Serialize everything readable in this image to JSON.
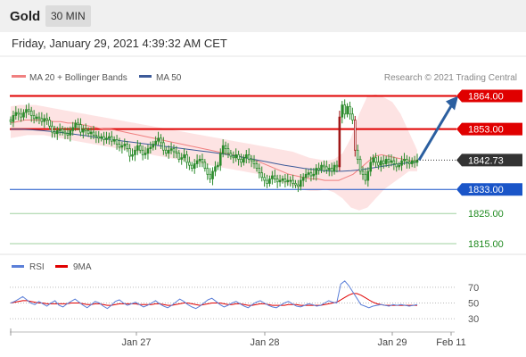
{
  "header": {
    "title": "Gold",
    "timeframe": "30 MIN"
  },
  "timestamp": "Friday, January 29, 2021 4:39:32 AM CET",
  "legend": {
    "ma20_label": "MA 20 + Bollinger Bands",
    "ma50_label": "MA 50",
    "credit": "Research © 2021 Trading Central",
    "rsi_label": "RSI",
    "rsi_ma_label": "9MA"
  },
  "colors": {
    "resistance": "#e00000",
    "support": "#1a55c8",
    "target_green": "#1f8a1f",
    "ma20": "#f08080",
    "ma50": "#3c5a99",
    "bollinger_fill": "#fde0e0",
    "candle": "#2a8a2a",
    "candle_down": "#a01818",
    "arrow": "#2b5fa0",
    "rsi": "#5b7fd8",
    "rsi_ma": "#e00000"
  },
  "chart_data": [
    {
      "type": "candlestick",
      "y_range": [
        1808,
        1870
      ],
      "x_labels": [
        "Jan 27",
        "Jan 28",
        "Jan 29",
        "Feb 11"
      ],
      "levels": [
        {
          "value": 1864.0,
          "label": "1864.00",
          "kind": "resistance"
        },
        {
          "value": 1853.0,
          "label": "1853.00",
          "kind": "resistance"
        },
        {
          "value": 1842.73,
          "label": "1842.73",
          "kind": "last"
        },
        {
          "value": 1833.0,
          "label": "1833.00",
          "kind": "support"
        },
        {
          "value": 1825.0,
          "label": "1825.00",
          "kind": "target"
        },
        {
          "value": 1815.0,
          "label": "1815.00",
          "kind": "target"
        }
      ],
      "close": [
        1855.5,
        1857.5,
        1858.5,
        1858.0,
        1857.0,
        1858.5,
        1859.5,
        1859.0,
        1857.5,
        1856.5,
        1857.0,
        1856.5,
        1855.5,
        1856.5,
        1856.0,
        1854.0,
        1852.0,
        1851.5,
        1852.5,
        1853.0,
        1852.0,
        1851.5,
        1851.0,
        1852.5,
        1853.5,
        1855.0,
        1854.5,
        1852.0,
        1853.0,
        1852.5,
        1851.5,
        1852.0,
        1851.0,
        1850.5,
        1850.0,
        1850.5,
        1849.5,
        1850.0,
        1850.5,
        1849.0,
        1849.5,
        1848.0,
        1847.0,
        1847.5,
        1848.0,
        1846.5,
        1844.0,
        1844.5,
        1846.0,
        1847.5,
        1846.0,
        1844.5,
        1845.0,
        1846.5,
        1847.0,
        1848.0,
        1849.0,
        1850.0,
        1848.5,
        1846.0,
        1845.0,
        1846.0,
        1846.5,
        1845.5,
        1845.0,
        1843.0,
        1843.5,
        1844.5,
        1842.0,
        1841.0,
        1840.0,
        1841.5,
        1842.5,
        1843.0,
        1842.0,
        1840.0,
        1838.0,
        1836.5,
        1839.0,
        1840.5,
        1841.0,
        1845.0,
        1847.5,
        1846.5,
        1845.0,
        1844.0,
        1843.5,
        1844.5,
        1843.0,
        1842.0,
        1843.5,
        1844.5,
        1843.0,
        1842.5,
        1841.5,
        1840.0,
        1838.5,
        1837.0,
        1836.0,
        1835.0,
        1836.5,
        1837.5,
        1836.5,
        1835.5,
        1836.0,
        1836.5,
        1835.5,
        1836.0,
        1836.0,
        1835.0,
        1834.5,
        1834.0,
        1836.0,
        1837.0,
        1838.0,
        1838.5,
        1837.5,
        1838.0,
        1840.0,
        1839.5,
        1841.0,
        1840.5,
        1839.5,
        1840.0,
        1839.0,
        1841.0,
        1840.5,
        1857.0,
        1861.0,
        1858.0,
        1860.5,
        1858.0,
        1856.0,
        1846.0,
        1843.0,
        1839.0,
        1838.0,
        1836.0,
        1839.0,
        1842.0,
        1843.5,
        1842.0,
        1841.0,
        1842.5,
        1841.5,
        1843.0,
        1842.0,
        1842.5,
        1841.5,
        1840.5,
        1841.0,
        1842.5,
        1843.0,
        1842.0,
        1841.5,
        1842.5,
        1842.0,
        1842.73
      ],
      "ma20": [
        1855.0,
        1855.5,
        1856.0,
        1856.0,
        1856.0,
        1856.0,
        1855.5,
        1855.5,
        1855.0,
        1855.0,
        1854.5,
        1854.0,
        1853.5,
        1853.0,
        1853.0,
        1852.5,
        1852.0,
        1851.5,
        1851.0,
        1850.5,
        1850.0,
        1849.5,
        1849.0,
        1848.5,
        1848.0,
        1847.5,
        1847.0,
        1846.5,
        1846.0,
        1845.5,
        1845.0,
        1844.5,
        1844.0,
        1843.5,
        1843.0,
        1842.0,
        1841.0,
        1840.0,
        1839.0,
        1838.0,
        1837.5,
        1837.0,
        1836.5,
        1836.5,
        1836.0,
        1836.0,
        1836.0,
        1837.0,
        1838.0,
        1840.0,
        1842.0,
        1844.0,
        1844.5,
        1844.0,
        1843.5,
        1843.0,
        1842.5,
        1842.5
      ],
      "ma50": [
        1853.0,
        1853.0,
        1852.8,
        1852.6,
        1852.3,
        1852.0,
        1851.6,
        1851.2,
        1850.8,
        1850.3,
        1849.8,
        1849.4,
        1849.0,
        1848.6,
        1848.2,
        1847.8,
        1847.4,
        1847.0,
        1846.6,
        1846.2,
        1845.8,
        1845.4,
        1845.0,
        1844.5,
        1844.0,
        1843.4,
        1842.8,
        1842.2,
        1841.6,
        1841.0,
        1840.5,
        1840.0,
        1839.6,
        1839.2,
        1839.0,
        1839.0,
        1839.2,
        1839.5,
        1840.0,
        1840.5,
        1841.0,
        1841.4,
        1841.8,
        1842.0
      ],
      "bb_upper": [
        1860.5,
        1861.0,
        1861.0,
        1861.0,
        1860.5,
        1860.0,
        1859.5,
        1859.0,
        1858.5,
        1858.0,
        1857.5,
        1857.0,
        1856.5,
        1856.0,
        1855.5,
        1855.0,
        1854.5,
        1854.0,
        1853.5,
        1853.0,
        1852.5,
        1852.0,
        1851.5,
        1851.0,
        1850.5,
        1850.0,
        1849.5,
        1849.0,
        1848.5,
        1848.0,
        1847.5,
        1847.0,
        1846.5,
        1846.0,
        1845.5,
        1844.5,
        1843.5,
        1843.0,
        1842.5,
        1843.0,
        1845.0,
        1850.0,
        1858.0,
        1864.0,
        1864.5,
        1863.5,
        1862.0,
        1858.0,
        1852.0,
        1846.0
      ],
      "bb_lower": [
        1850.0,
        1850.5,
        1851.0,
        1851.0,
        1851.0,
        1850.5,
        1850.0,
        1849.5,
        1849.0,
        1848.5,
        1848.0,
        1847.5,
        1847.0,
        1846.5,
        1846.0,
        1845.5,
        1845.0,
        1844.5,
        1844.0,
        1843.5,
        1843.0,
        1842.5,
        1842.0,
        1841.5,
        1841.0,
        1840.5,
        1840.0,
        1839.5,
        1839.0,
        1838.5,
        1838.0,
        1837.0,
        1836.0,
        1835.0,
        1834.0,
        1833.0,
        1832.5,
        1832.5,
        1833.0,
        1832.0,
        1830.0,
        1827.0,
        1826.0,
        1827.0,
        1830.0,
        1833.0,
        1835.0,
        1837.0,
        1839.0,
        1839.0
      ],
      "projection": {
        "from": 1842.73,
        "to": 1864.0
      }
    },
    {
      "type": "line",
      "title": "RSI",
      "y_range": [
        20,
        80
      ],
      "y_ticks": [
        70,
        50,
        30
      ],
      "rsi": [
        50,
        52,
        55,
        58,
        54,
        50,
        48,
        52,
        49,
        46,
        50,
        53,
        47,
        45,
        49,
        52,
        55,
        51,
        47,
        44,
        48,
        52,
        50,
        46,
        43,
        47,
        52,
        54,
        50,
        47,
        49,
        51,
        48,
        45,
        47,
        50,
        53,
        49,
        46,
        44,
        47,
        51,
        55,
        52,
        48,
        45,
        43,
        46,
        50,
        54,
        56,
        52,
        48,
        45,
        47,
        50,
        52,
        49,
        46,
        44,
        48,
        51,
        53,
        50,
        47,
        45,
        44,
        47,
        50,
        52,
        49,
        46,
        45,
        47,
        49,
        48,
        46,
        47,
        50,
        53,
        51,
        50,
        74,
        78,
        72,
        64,
        56,
        48,
        46,
        44,
        46,
        47,
        48,
        47,
        46,
        48,
        47,
        48,
        47,
        46,
        47,
        48
      ],
      "rsi_ma": [
        50,
        51,
        52,
        53,
        53,
        52,
        51,
        50,
        50,
        49,
        49,
        49,
        49,
        49,
        49,
        50,
        50,
        50,
        49,
        48,
        48,
        49,
        49,
        48,
        47,
        47,
        48,
        49,
        49,
        49,
        49,
        49,
        48,
        48,
        48,
        48,
        49,
        49,
        48,
        47,
        47,
        48,
        49,
        50,
        50,
        49,
        48,
        47,
        48,
        49,
        50,
        50,
        50,
        49,
        48,
        48,
        49,
        49,
        48,
        47,
        47,
        48,
        49,
        49,
        48,
        47,
        47,
        47,
        47,
        48,
        48,
        48,
        47,
        47,
        47,
        47,
        47,
        47,
        48,
        49,
        50,
        51,
        54,
        57,
        60,
        62,
        62,
        60,
        57,
        54,
        51,
        49,
        48,
        47,
        47,
        47,
        47,
        47,
        47,
        47,
        47,
        47
      ]
    }
  ]
}
